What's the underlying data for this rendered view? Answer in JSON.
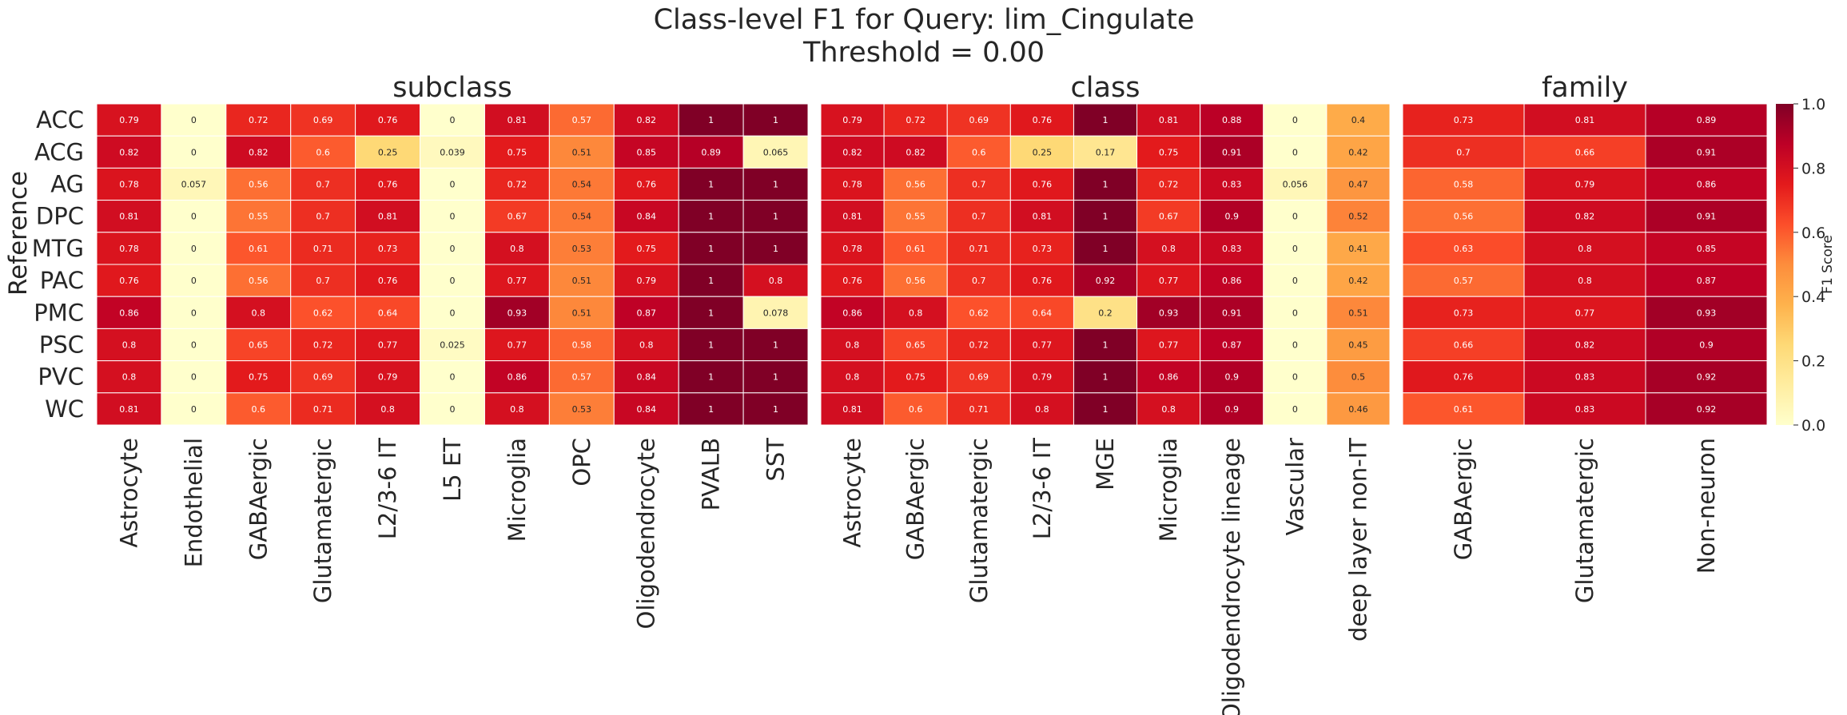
{
  "figure": {
    "title_line1": "Class-level F1 for Query: lim_Cingulate",
    "title_line2": "Threshold = 0.00",
    "ylabel": "Reference",
    "colorbar_label": "F1 Score",
    "colorbar_ticks": [
      "0.0",
      "0.2",
      "0.4",
      "0.6",
      "0.8",
      "1.0"
    ]
  },
  "chart_data": [
    {
      "type": "heatmap",
      "title": "subclass",
      "colormap": "YlOrRd",
      "vmin": 0,
      "vmax": 1,
      "ylabel": "Reference",
      "rows": [
        "ACC",
        "ACG",
        "AG",
        "DPC",
        "MTG",
        "PAC",
        "PMC",
        "PSC",
        "PVC",
        "WC"
      ],
      "columns": [
        "Astrocyte",
        "Endothelial",
        "GABAergic",
        "Glutamatergic",
        "L2/3-6 IT",
        "L5 ET",
        "Microglia",
        "OPC",
        "Oligodendrocyte",
        "PVALB",
        "SST"
      ],
      "values": [
        [
          "0.79",
          "0",
          "0.72",
          "0.69",
          "0.76",
          "0",
          "0.81",
          "0.57",
          "0.82",
          "1",
          "1"
        ],
        [
          "0.82",
          "0",
          "0.82",
          "0.6",
          "0.25",
          "0.039",
          "0.75",
          "0.51",
          "0.85",
          "0.89",
          "0.065"
        ],
        [
          "0.78",
          "0.057",
          "0.56",
          "0.7",
          "0.76",
          "0",
          "0.72",
          "0.54",
          "0.76",
          "1",
          "1"
        ],
        [
          "0.81",
          "0",
          "0.55",
          "0.7",
          "0.81",
          "0",
          "0.67",
          "0.54",
          "0.84",
          "1",
          "1"
        ],
        [
          "0.78",
          "0",
          "0.61",
          "0.71",
          "0.73",
          "0",
          "0.8",
          "0.53",
          "0.75",
          "1",
          "1"
        ],
        [
          "0.76",
          "0",
          "0.56",
          "0.7",
          "0.76",
          "0",
          "0.77",
          "0.51",
          "0.79",
          "1",
          "0.8"
        ],
        [
          "0.86",
          "0",
          "0.8",
          "0.62",
          "0.64",
          "0",
          "0.93",
          "0.51",
          "0.87",
          "1",
          "0.078"
        ],
        [
          "0.8",
          "0",
          "0.65",
          "0.72",
          "0.77",
          "0.025",
          "0.77",
          "0.58",
          "0.8",
          "1",
          "1"
        ],
        [
          "0.8",
          "0",
          "0.75",
          "0.69",
          "0.79",
          "0",
          "0.86",
          "0.57",
          "0.84",
          "1",
          "1"
        ],
        [
          "0.81",
          "0",
          "0.6",
          "0.71",
          "0.8",
          "0",
          "0.8",
          "0.53",
          "0.84",
          "1",
          "1"
        ]
      ]
    },
    {
      "type": "heatmap",
      "title": "class",
      "colormap": "YlOrRd",
      "vmin": 0,
      "vmax": 1,
      "rows": [
        "ACC",
        "ACG",
        "AG",
        "DPC",
        "MTG",
        "PAC",
        "PMC",
        "PSC",
        "PVC",
        "WC"
      ],
      "columns": [
        "Astrocyte",
        "GABAergic",
        "Glutamatergic",
        "L2/3-6 IT",
        "MGE",
        "Microglia",
        "Oligodendrocyte lineage",
        "Vascular",
        "deep layer non-IT"
      ],
      "values": [
        [
          "0.79",
          "0.72",
          "0.69",
          "0.76",
          "1",
          "0.81",
          "0.88",
          "0",
          "0.4"
        ],
        [
          "0.82",
          "0.82",
          "0.6",
          "0.25",
          "0.17",
          "0.75",
          "0.91",
          "0",
          "0.42"
        ],
        [
          "0.78",
          "0.56",
          "0.7",
          "0.76",
          "1",
          "0.72",
          "0.83",
          "0.056",
          "0.47"
        ],
        [
          "0.81",
          "0.55",
          "0.7",
          "0.81",
          "1",
          "0.67",
          "0.9",
          "0",
          "0.52"
        ],
        [
          "0.78",
          "0.61",
          "0.71",
          "0.73",
          "1",
          "0.8",
          "0.83",
          "0",
          "0.41"
        ],
        [
          "0.76",
          "0.56",
          "0.7",
          "0.76",
          "0.92",
          "0.77",
          "0.86",
          "0",
          "0.42"
        ],
        [
          "0.86",
          "0.8",
          "0.62",
          "0.64",
          "0.2",
          "0.93",
          "0.91",
          "0",
          "0.51"
        ],
        [
          "0.8",
          "0.65",
          "0.72",
          "0.77",
          "1",
          "0.77",
          "0.87",
          "0",
          "0.45"
        ],
        [
          "0.8",
          "0.75",
          "0.69",
          "0.79",
          "1",
          "0.86",
          "0.9",
          "0",
          "0.5"
        ],
        [
          "0.81",
          "0.6",
          "0.71",
          "0.8",
          "1",
          "0.8",
          "0.9",
          "0",
          "0.46"
        ]
      ]
    },
    {
      "type": "heatmap",
      "title": "family",
      "colormap": "YlOrRd",
      "vmin": 0,
      "vmax": 1,
      "rows": [
        "ACC",
        "ACG",
        "AG",
        "DPC",
        "MTG",
        "PAC",
        "PMC",
        "PSC",
        "PVC",
        "WC"
      ],
      "columns": [
        "GABAergic",
        "Glutamatergic",
        "Non-neuron"
      ],
      "values": [
        [
          "0.73",
          "0.81",
          "0.89"
        ],
        [
          "0.7",
          "0.66",
          "0.91"
        ],
        [
          "0.58",
          "0.79",
          "0.86"
        ],
        [
          "0.56",
          "0.82",
          "0.91"
        ],
        [
          "0.63",
          "0.8",
          "0.85"
        ],
        [
          "0.57",
          "0.8",
          "0.87"
        ],
        [
          "0.73",
          "0.77",
          "0.93"
        ],
        [
          "0.66",
          "0.82",
          "0.9"
        ],
        [
          "0.76",
          "0.83",
          "0.92"
        ],
        [
          "0.61",
          "0.83",
          "0.92"
        ]
      ]
    }
  ]
}
